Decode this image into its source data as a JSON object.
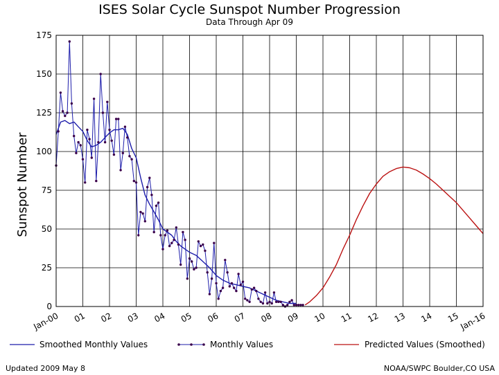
{
  "chart_data": {
    "type": "line",
    "title": "ISES Solar Cycle Sunspot Number Progression",
    "subtitle": "Data Through Apr 09",
    "ylabel": "Sunspot Number",
    "xlabel": "",
    "ylim": [
      0,
      175
    ],
    "yticks": [
      0,
      25,
      50,
      75,
      100,
      125,
      150,
      175
    ],
    "xlim": [
      2000.0,
      2016.0
    ],
    "xtick_labels": [
      "Jan-00",
      "01",
      "02",
      "03",
      "04",
      "05",
      "06",
      "07",
      "08",
      "09",
      "10",
      "11",
      "12",
      "13",
      "14",
      "15",
      "Jan-16"
    ],
    "grid": true,
    "legend_position": "bottom",
    "series": [
      {
        "name": "Smoothed Monthly Values",
        "color": "#1c1caa",
        "style": "line",
        "x": [
          2000.0,
          2000.17,
          2000.33,
          2000.5,
          2000.67,
          2000.83,
          2001.0,
          2001.17,
          2001.33,
          2001.5,
          2001.67,
          2001.83,
          2002.0,
          2002.17,
          2002.33,
          2002.5,
          2002.67,
          2002.83,
          2003.0,
          2003.17,
          2003.33,
          2003.5,
          2003.67,
          2003.83,
          2004.0,
          2004.17,
          2004.33,
          2004.5,
          2004.67,
          2004.83,
          2005.0,
          2005.25,
          2005.5,
          2005.75,
          2006.0,
          2006.25,
          2006.5,
          2006.75,
          2007.0,
          2007.25,
          2007.5,
          2007.75,
          2008.0,
          2008.25,
          2008.5,
          2008.75,
          2009.0
        ],
        "y": [
          111,
          119,
          120,
          118,
          119,
          116,
          113,
          107,
          103,
          104,
          106,
          109,
          112,
          114,
          114,
          115,
          111,
          102,
          96,
          83,
          72,
          66,
          61,
          56,
          50,
          48,
          46,
          42,
          39,
          37,
          35,
          33,
          29,
          25,
          20,
          17,
          15,
          14,
          13,
          12,
          10,
          8,
          6,
          4,
          3,
          2,
          2
        ]
      },
      {
        "name": "Monthly Values",
        "color": "#1c1caa",
        "marker_color": "#3a004a",
        "style": "line+markers",
        "x": [
          2000.0,
          2000.083,
          2000.167,
          2000.25,
          2000.333,
          2000.417,
          2000.5,
          2000.583,
          2000.667,
          2000.75,
          2000.833,
          2000.917,
          2001.0,
          2001.083,
          2001.167,
          2001.25,
          2001.333,
          2001.417,
          2001.5,
          2001.583,
          2001.667,
          2001.75,
          2001.833,
          2001.917,
          2002.0,
          2002.083,
          2002.167,
          2002.25,
          2002.333,
          2002.417,
          2002.5,
          2002.583,
          2002.667,
          2002.75,
          2002.833,
          2002.917,
          2003.0,
          2003.083,
          2003.167,
          2003.25,
          2003.333,
          2003.417,
          2003.5,
          2003.583,
          2003.667,
          2003.75,
          2003.833,
          2003.917,
          2004.0,
          2004.083,
          2004.167,
          2004.25,
          2004.333,
          2004.417,
          2004.5,
          2004.583,
          2004.667,
          2004.75,
          2004.833,
          2004.917,
          2005.0,
          2005.083,
          2005.167,
          2005.25,
          2005.333,
          2005.417,
          2005.5,
          2005.583,
          2005.667,
          2005.75,
          2005.833,
          2005.917,
          2006.0,
          2006.083,
          2006.167,
          2006.25,
          2006.333,
          2006.417,
          2006.5,
          2006.583,
          2006.667,
          2006.75,
          2006.833,
          2006.917,
          2007.0,
          2007.083,
          2007.167,
          2007.25,
          2007.333,
          2007.417,
          2007.5,
          2007.583,
          2007.667,
          2007.75,
          2007.833,
          2007.917,
          2008.0,
          2008.083,
          2008.167,
          2008.25,
          2008.333,
          2008.417,
          2008.5,
          2008.583,
          2008.667,
          2008.75,
          2008.833,
          2008.917,
          2009.0,
          2009.083,
          2009.167,
          2009.25
        ],
        "y": [
          91,
          113,
          138,
          126,
          123,
          125,
          171,
          131,
          110,
          99,
          106,
          104,
          95,
          80,
          114,
          108,
          96,
          134,
          81,
          106,
          150,
          125,
          106,
          132,
          114,
          107,
          98,
          121,
          121,
          88,
          99,
          116,
          109,
          97,
          95,
          81,
          80,
          46,
          61,
          60,
          55,
          77,
          83,
          72,
          48,
          65,
          67,
          46,
          37,
          46,
          49,
          39,
          41,
          43,
          51,
          40,
          27,
          48,
          43,
          18,
          31,
          29,
          24,
          25,
          42,
          39,
          40,
          36,
          22,
          8,
          18,
          41,
          15,
          5,
          10,
          12,
          30,
          22,
          13,
          15,
          12,
          10,
          21,
          14,
          16,
          5,
          4,
          3,
          11,
          12,
          10,
          5,
          3,
          2,
          9,
          2,
          3,
          2,
          9,
          3,
          3,
          3,
          1,
          0,
          1,
          3,
          4,
          1,
          1,
          1,
          1,
          1
        ]
      },
      {
        "name": "Predicted Values (Smoothed)",
        "color": "#bb1111",
        "style": "line",
        "x": [
          2009.33,
          2009.5,
          2009.75,
          2010.0,
          2010.25,
          2010.5,
          2010.75,
          2011.0,
          2011.25,
          2011.5,
          2011.75,
          2012.0,
          2012.25,
          2012.5,
          2012.75,
          2013.0,
          2013.25,
          2013.5,
          2013.75,
          2014.0,
          2014.25,
          2014.5,
          2014.75,
          2015.0,
          2015.25,
          2015.5,
          2015.75,
          2016.0
        ],
        "y": [
          1,
          3,
          7,
          12,
          19,
          27,
          37,
          46,
          56,
          65,
          73,
          79,
          84,
          87,
          89,
          90,
          89.5,
          88,
          85.5,
          82.5,
          79,
          75,
          71,
          67,
          62,
          57,
          52,
          47
        ]
      }
    ]
  },
  "footer": {
    "updated": "Updated 2009 May  8",
    "source": "NOAA/SWPC Boulder,CO USA"
  }
}
